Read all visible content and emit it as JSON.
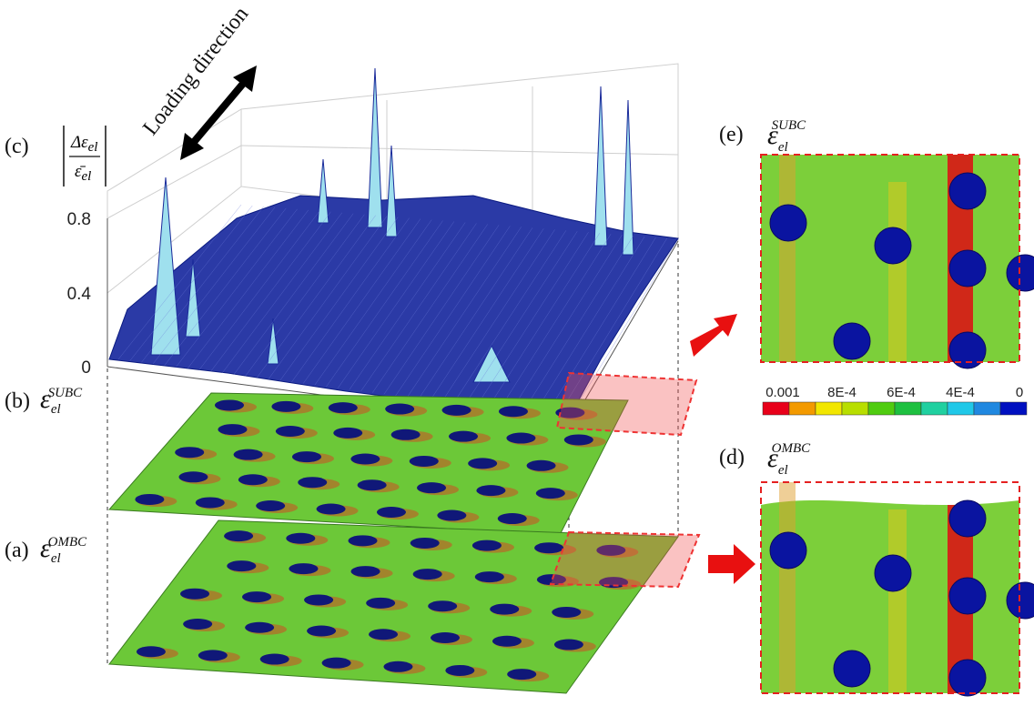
{
  "panels": {
    "c": {
      "label": "(c)",
      "quantity": {
        "numerator": "Δε",
        "numerator_sub": "el",
        "denominator": "ε̄",
        "denominator_sub": "el"
      },
      "axis_ticks": [
        "0.8",
        "0.4",
        "0"
      ],
      "annotation": "Loading direction"
    },
    "b": {
      "label": "(b)",
      "symbol": "ε",
      "subscript": "el",
      "superscript": "SUBC"
    },
    "a": {
      "label": "(a)",
      "symbol": "ε",
      "subscript": "el",
      "superscript": "OMBC"
    },
    "e": {
      "label": "(e)",
      "symbol": "ε",
      "subscript": "el",
      "superscript": "SUBC"
    },
    "d": {
      "label": "(d)",
      "symbol": "ε",
      "subscript": "el",
      "superscript": "OMBC"
    }
  },
  "colorbar": {
    "labels": [
      "0.001",
      "8E-4",
      "6E-4",
      "4E-4",
      "0"
    ],
    "colors": [
      "#e8001a",
      "#f39a00",
      "#f2e600",
      "#b8de00",
      "#50cc10",
      "#1ec040",
      "#20d0a0",
      "#20c8e8",
      "#2088e0",
      "#0010c0"
    ]
  }
}
